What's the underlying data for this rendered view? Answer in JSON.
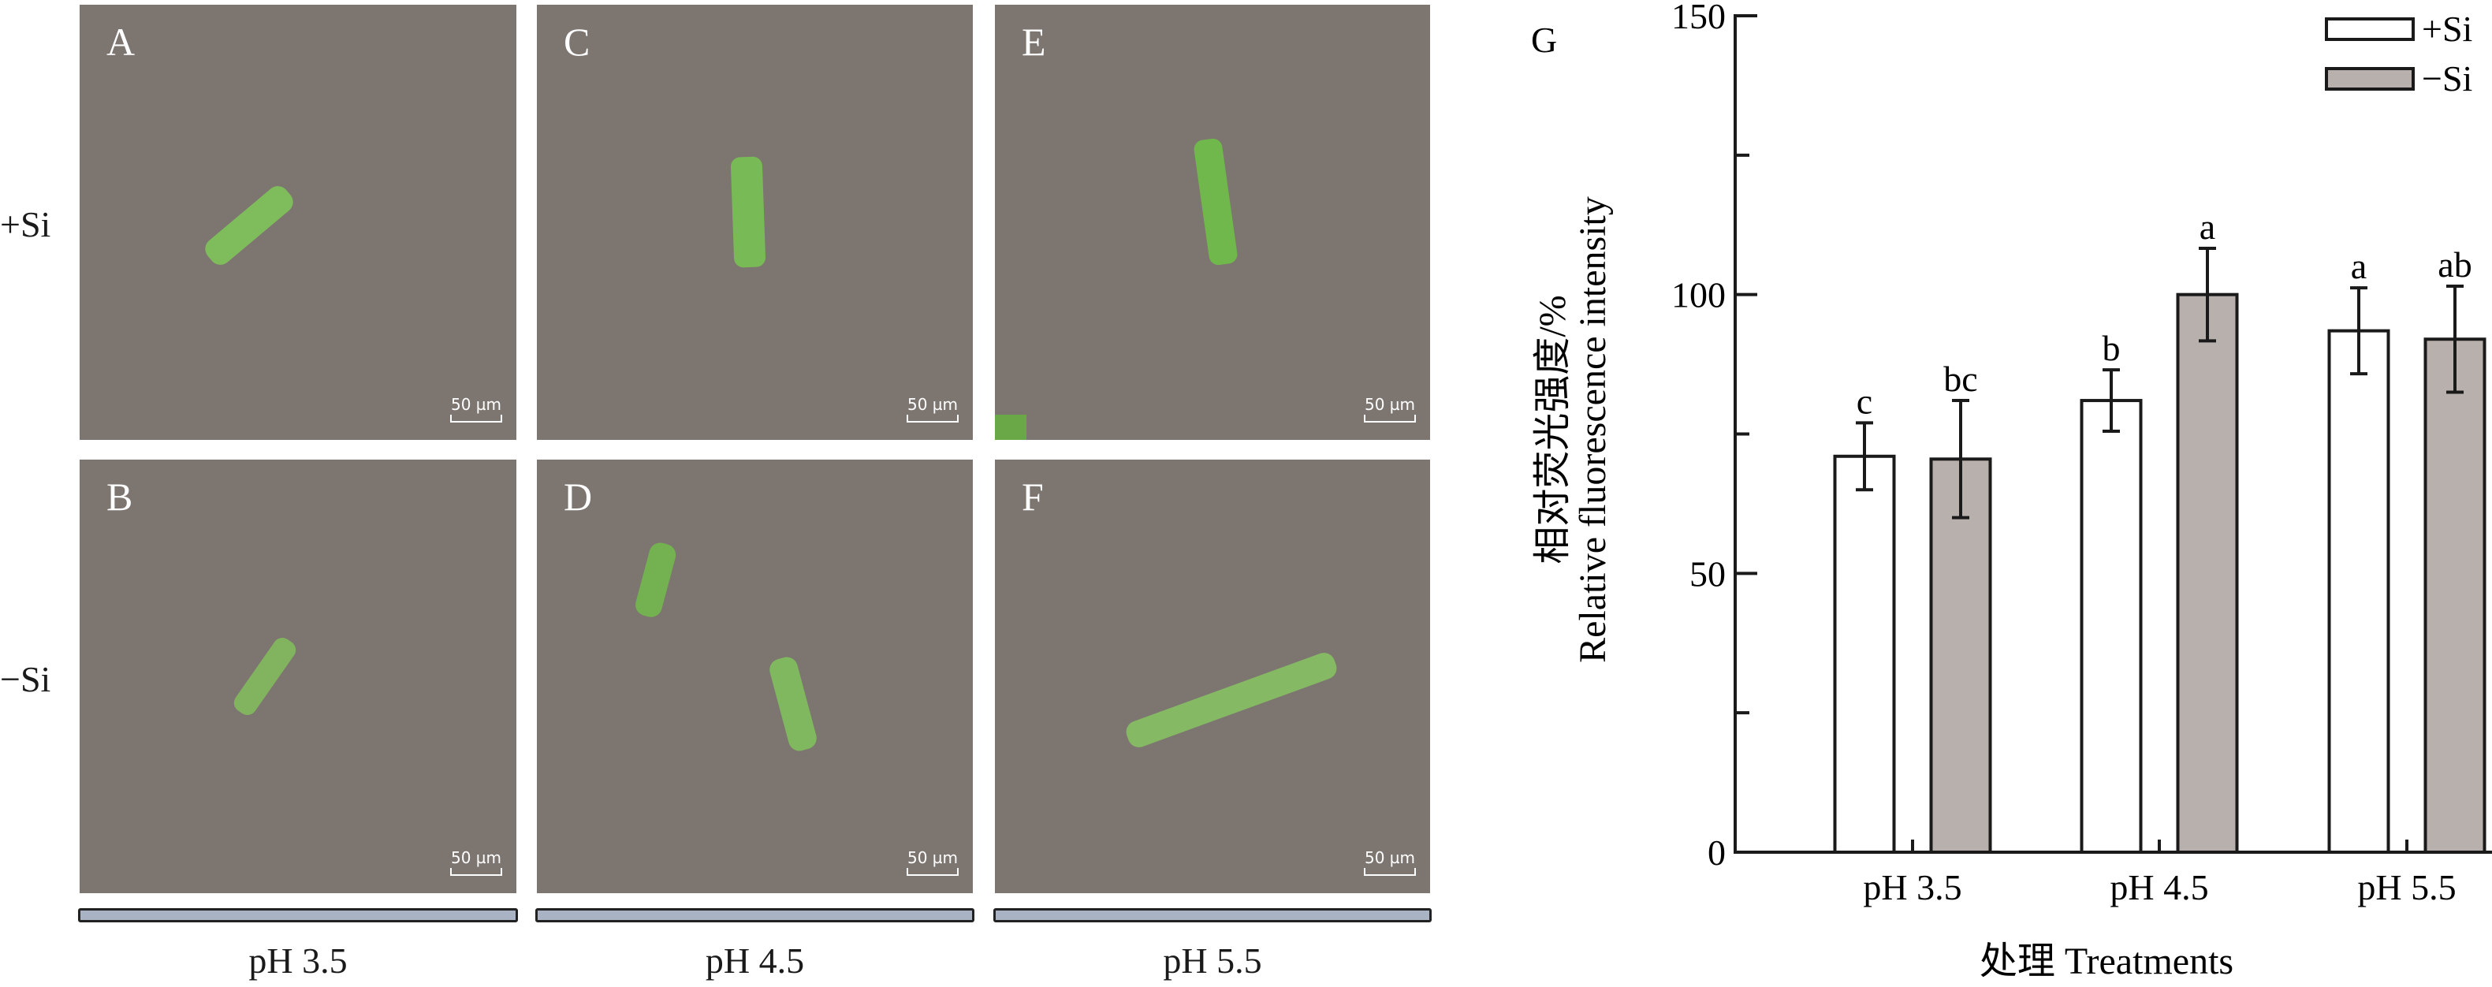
{
  "row_labels": [
    "+Si",
    "−Si"
  ],
  "panels": [
    {
      "label": "A",
      "scale": "50 µm"
    },
    {
      "label": "B",
      "scale": "50 µm"
    },
    {
      "label": "C",
      "scale": "50 µm"
    },
    {
      "label": "D",
      "scale": "50 µm"
    },
    {
      "label": "E",
      "scale": "50 µm"
    },
    {
      "label": "F",
      "scale": "50 µm"
    }
  ],
  "column_labels": [
    "pH 3.5",
    "pH 4.5",
    "pH 5.5"
  ],
  "colors": {
    "plus_si": "#ffffff",
    "minus_si": "#b8b0ac",
    "micrograph_bg": "#7d7570",
    "cell": "#7fc45a"
  },
  "chart_data": {
    "type": "bar",
    "panel_label": "G",
    "categories": [
      "pH 3.5",
      "pH 4.5",
      "pH 5.5"
    ],
    "series": [
      {
        "name": "+Si",
        "values": [
          71,
          81,
          93.5
        ],
        "errors": [
          6,
          5.5,
          7.7
        ],
        "letters": [
          "c",
          "b",
          "a"
        ]
      },
      {
        "name": "−Si",
        "values": [
          70.5,
          100,
          92
        ],
        "errors": [
          10.5,
          8.3,
          9.5
        ],
        "letters": [
          "bc",
          "a",
          "ab"
        ]
      }
    ],
    "ylabel_cn": "相对荧光强度/%",
    "ylabel": "Relative fluorescence intensity",
    "xlabel": "处理 Treatments",
    "ylim": [
      0,
      150
    ],
    "yticks": [
      0,
      50,
      100,
      150
    ],
    "legend_position": "top-right"
  }
}
